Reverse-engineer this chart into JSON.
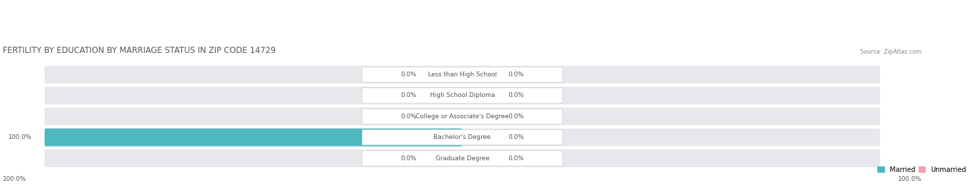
{
  "title": "FERTILITY BY EDUCATION BY MARRIAGE STATUS IN ZIP CODE 14729",
  "source": "Source: ZipAtlas.com",
  "categories": [
    "Less than High School",
    "High School Diploma",
    "College or Associate's Degree",
    "Bachelor's Degree",
    "Graduate Degree"
  ],
  "married_values": [
    0.0,
    0.0,
    0.0,
    100.0,
    0.0
  ],
  "unmarried_values": [
    0.0,
    0.0,
    0.0,
    0.0,
    0.0
  ],
  "married_color": "#4db8c0",
  "unmarried_color": "#f4a0b0",
  "bg_bar_color": "#e8e8ec",
  "bar_bg_color": "#f0f0f4",
  "title_color": "#555555",
  "text_color": "#555555",
  "max_value": 100.0,
  "figsize": [
    14.06,
    2.69
  ],
  "dpi": 100
}
